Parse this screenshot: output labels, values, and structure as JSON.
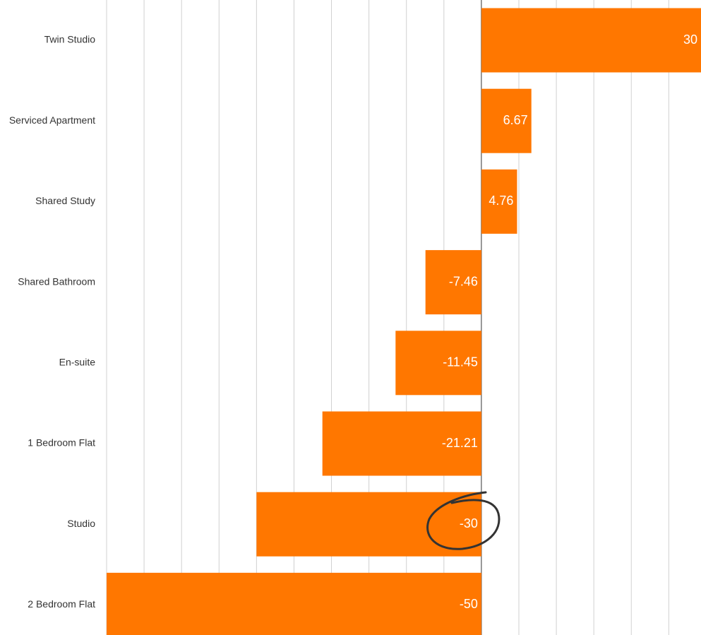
{
  "chart_data": {
    "type": "bar",
    "orientation": "horizontal",
    "categories": [
      "Twin Studio",
      "Serviced Apartment",
      "Shared Study",
      "Shared Bathroom",
      "En-suite",
      "1 Bedroom Flat",
      "Studio",
      "2 Bedroom Flat"
    ],
    "values": [
      30,
      6.67,
      4.76,
      -7.46,
      -11.45,
      -21.21,
      -30,
      -50
    ],
    "color": "#ff7700",
    "xlim": [
      -50,
      29.3
    ],
    "xticks": [
      -50,
      -45,
      -40,
      -35,
      -30,
      -25,
      -20,
      -15,
      -10,
      -5,
      0,
      5,
      10,
      15,
      20,
      25
    ],
    "grid": true
  }
}
